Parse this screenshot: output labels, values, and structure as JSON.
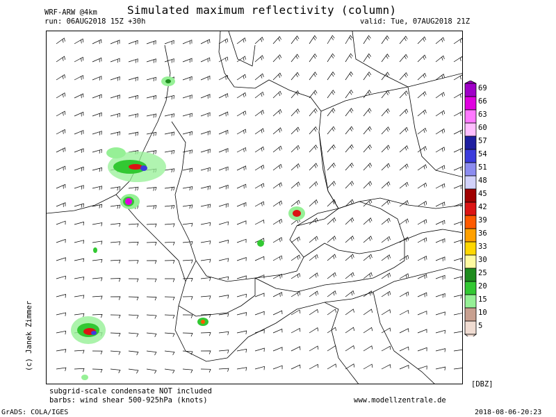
{
  "header": {
    "title": "Simulated maximum reflectivity (column)",
    "model": "WRF-ARW @4km",
    "run": "run: 06AUG2018 15Z +30h",
    "valid": "valid: Tue, 07AUG2018 21Z"
  },
  "credit": "(c) Janek Zimmer",
  "footer": {
    "note1": "subgrid-scale condensate NOT included",
    "note2": "barbs: wind shear 500-925hPa (knots)",
    "site": "www.modellzentrale.de",
    "software": "GrADS: COLA/IGES",
    "timestamp": "2018-08-06-20:23"
  },
  "colorbar": {
    "unit": "[DBZ]",
    "levels": [
      {
        "value": "69",
        "color": "#a000c8"
      },
      {
        "value": "66",
        "color": "#e000e0"
      },
      {
        "value": "63",
        "color": "#ff78ff"
      },
      {
        "value": "60",
        "color": "#ffbeff"
      },
      {
        "value": "57",
        "color": "#1e1ea0"
      },
      {
        "value": "54",
        "color": "#3c3cdc"
      },
      {
        "value": "51",
        "color": "#8c8cf0"
      },
      {
        "value": "48",
        "color": "#d2d2fa"
      },
      {
        "value": "45",
        "color": "#a00000"
      },
      {
        "value": "42",
        "color": "#dc1414"
      },
      {
        "value": "39",
        "color": "#ff5a00"
      },
      {
        "value": "36",
        "color": "#ffa000"
      },
      {
        "value": "33",
        "color": "#ffd700"
      },
      {
        "value": "30",
        "color": "#fffaa0"
      },
      {
        "value": "25",
        "color": "#1e8c1e"
      },
      {
        "value": "20",
        "color": "#32c832"
      },
      {
        "value": "15",
        "color": "#96f096"
      },
      {
        "value": "10",
        "color": "#c8a090"
      },
      {
        "value": "5",
        "color": "#f0dcd2"
      }
    ]
  }
}
